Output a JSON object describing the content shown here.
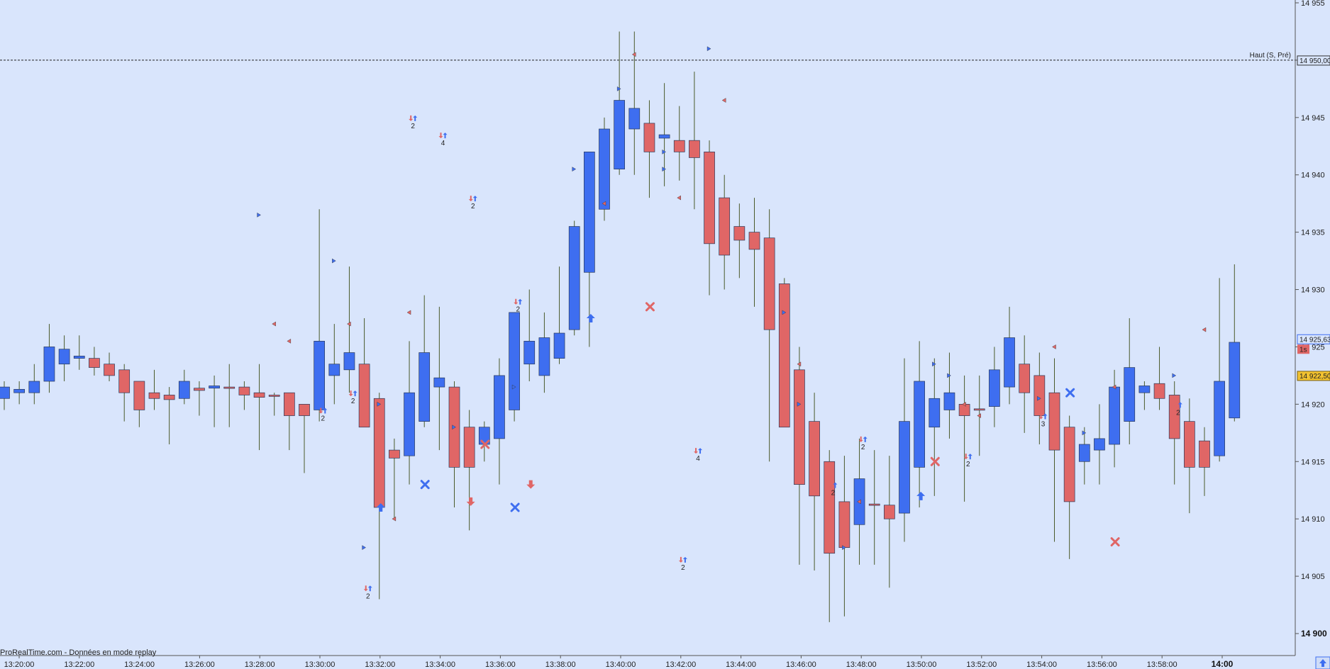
{
  "watermark": "ProRealTime.com - Données en mode replay",
  "colors": {
    "bull": "#3e6ef0",
    "bear": "#e06666",
    "bg": "#d9e5fc",
    "wick": "#4a5a2a"
  },
  "markers": {
    "label_1s": "1s",
    "count_labels": [
      "2",
      "2",
      "2",
      "2",
      "4",
      "2",
      "2",
      "4",
      "2",
      "2",
      "2",
      "2",
      "3",
      "2"
    ]
  },
  "chart_data": {
    "type": "candlestick",
    "ylim": [
      14899,
      14956
    ],
    "y_ticks": [
      "14 955",
      "14 950",
      "14 945",
      "14 940",
      "14 935",
      "14 930",
      "14 925",
      "14 920",
      "14 915",
      "14 910",
      "14 905",
      "14 900"
    ],
    "y_tick_values": [
      14955,
      14950,
      14945,
      14940,
      14935,
      14930,
      14925,
      14920,
      14915,
      14910,
      14905,
      14900
    ],
    "x_ticks": [
      "13:20:00",
      "13:22:00",
      "13:24:00",
      "13:26:00",
      "13:28:00",
      "13:30:00",
      "13:32:00",
      "13:34:00",
      "13:36:00",
      "13:38:00",
      "13:40:00",
      "13:42:00",
      "13:44:00",
      "13:46:00",
      "13:48:00",
      "13:50:00",
      "13:52:00",
      "13:54:00",
      "13:56:00",
      "13:58:00",
      "14:00"
    ],
    "x_tick_bold": "14:00",
    "reference_line": {
      "label": "Haut (S, Pré)",
      "value": 14950.0,
      "value_label": "14 950,00"
    },
    "price_labels": [
      {
        "value": 14925.63,
        "text": "14 925,63"
      },
      {
        "value": 14922.5,
        "text": "14 922,50"
      }
    ],
    "candles": [
      {
        "o": 14920.5,
        "h": 14922.0,
        "l": 14919.5,
        "c": 14921.5
      },
      {
        "o": 14921.0,
        "h": 14922.0,
        "l": 14920.0,
        "c": 14921.3
      },
      {
        "o": 14921.0,
        "h": 14923.5,
        "l": 14920.0,
        "c": 14922.0
      },
      {
        "o": 14922.0,
        "h": 14927.0,
        "l": 14921.0,
        "c": 14925.0
      },
      {
        "o": 14923.5,
        "h": 14926.0,
        "l": 14922.0,
        "c": 14924.8
      },
      {
        "o": 14924.0,
        "h": 14926.0,
        "l": 14923.0,
        "c": 14924.2
      },
      {
        "o": 14924.0,
        "h": 14925.0,
        "l": 14922.5,
        "c": 14923.2
      },
      {
        "o": 14923.5,
        "h": 14924.5,
        "l": 14922.0,
        "c": 14922.5
      },
      {
        "o": 14923.0,
        "h": 14923.5,
        "l": 14918.5,
        "c": 14921.0
      },
      {
        "o": 14922.0,
        "h": 14922.0,
        "l": 14918.0,
        "c": 14919.5
      },
      {
        "o": 14921.0,
        "h": 14923.0,
        "l": 14919.5,
        "c": 14920.5
      },
      {
        "o": 14920.8,
        "h": 14921.5,
        "l": 14916.5,
        "c": 14920.4
      },
      {
        "o": 14920.5,
        "h": 14923.0,
        "l": 14920.0,
        "c": 14922.0
      },
      {
        "o": 14921.4,
        "h": 14922.0,
        "l": 14919.0,
        "c": 14921.2
      },
      {
        "o": 14921.4,
        "h": 14922.5,
        "l": 14918.0,
        "c": 14921.6
      },
      {
        "o": 14921.5,
        "h": 14923.5,
        "l": 14918.0,
        "c": 14921.4
      },
      {
        "o": 14921.5,
        "h": 14922.0,
        "l": 14919.5,
        "c": 14920.8
      },
      {
        "o": 14921.0,
        "h": 14923.5,
        "l": 14916.0,
        "c": 14920.6
      },
      {
        "o": 14920.8,
        "h": 14921.0,
        "l": 14919.0,
        "c": 14920.7
      },
      {
        "o": 14921.0,
        "h": 14921.0,
        "l": 14916.0,
        "c": 14919.0
      },
      {
        "o": 14920.0,
        "h": 14920.0,
        "l": 14914.0,
        "c": 14919.0
      },
      {
        "o": 14919.5,
        "h": 14937.0,
        "l": 14918.5,
        "c": 14925.5
      },
      {
        "o": 14922.5,
        "h": 14927.0,
        "l": 14920.0,
        "c": 14923.5
      },
      {
        "o": 14923.0,
        "h": 14932.0,
        "l": 14921.0,
        "c": 14924.5
      },
      {
        "o": 14923.5,
        "h": 14927.5,
        "l": 14918.0,
        "c": 14918.0
      },
      {
        "o": 14920.5,
        "h": 14921.0,
        "l": 14903.0,
        "c": 14911.0
      },
      {
        "o": 14916.0,
        "h": 14917.0,
        "l": 14910.0,
        "c": 14915.3
      },
      {
        "o": 14915.5,
        "h": 14925.5,
        "l": 14913.0,
        "c": 14921.0
      },
      {
        "o": 14918.5,
        "h": 14929.5,
        "l": 14918.0,
        "c": 14924.5
      },
      {
        "o": 14921.5,
        "h": 14928.5,
        "l": 14916.0,
        "c": 14922.3
      },
      {
        "o": 14921.5,
        "h": 14922.0,
        "l": 14911.0,
        "c": 14914.5
      },
      {
        "o": 14918.0,
        "h": 14919.5,
        "l": 14909.0,
        "c": 14914.5
      },
      {
        "o": 14916.5,
        "h": 14918.5,
        "l": 14915.0,
        "c": 14918.0
      },
      {
        "o": 14917.0,
        "h": 14924.0,
        "l": 14913.0,
        "c": 14922.5
      },
      {
        "o": 14919.5,
        "h": 14928.0,
        "l": 14918.5,
        "c": 14928.0
      },
      {
        "o": 14923.5,
        "h": 14930.0,
        "l": 14922.0,
        "c": 14925.5
      },
      {
        "o": 14922.5,
        "h": 14928.0,
        "l": 14921.0,
        "c": 14925.8
      },
      {
        "o": 14924.0,
        "h": 14932.0,
        "l": 14923.5,
        "c": 14926.2
      },
      {
        "o": 14926.5,
        "h": 14936.0,
        "l": 14926.0,
        "c": 14935.5
      },
      {
        "o": 14931.5,
        "h": 14942.0,
        "l": 14925.0,
        "c": 14942.0
      },
      {
        "o": 14937.0,
        "h": 14945.0,
        "l": 14936.0,
        "c": 14944.0
      },
      {
        "o": 14940.5,
        "h": 14952.5,
        "l": 14940.0,
        "c": 14946.5
      },
      {
        "o": 14944.0,
        "h": 14952.5,
        "l": 14940.0,
        "c": 14945.8
      },
      {
        "o": 14944.5,
        "h": 14946.5,
        "l": 14938.0,
        "c": 14942.0
      },
      {
        "o": 14943.2,
        "h": 14948.0,
        "l": 14939.0,
        "c": 14943.5
      },
      {
        "o": 14943.0,
        "h": 14946.0,
        "l": 14939.5,
        "c": 14942.0
      },
      {
        "o": 14943.0,
        "h": 14949.0,
        "l": 14937.0,
        "c": 14941.5
      },
      {
        "o": 14942.0,
        "h": 14943.0,
        "l": 14929.5,
        "c": 14934.0
      },
      {
        "o": 14938.0,
        "h": 14940.0,
        "l": 14930.0,
        "c": 14933.0
      },
      {
        "o": 14935.5,
        "h": 14937.5,
        "l": 14931.0,
        "c": 14934.3
      },
      {
        "o": 14935.0,
        "h": 14938.0,
        "l": 14928.5,
        "c": 14933.5
      },
      {
        "o": 14934.5,
        "h": 14937.0,
        "l": 14915.0,
        "c": 14926.5
      },
      {
        "o": 14930.5,
        "h": 14931.0,
        "l": 14918.5,
        "c": 14918.0
      },
      {
        "o": 14923.0,
        "h": 14925.0,
        "l": 14906.0,
        "c": 14913.0
      },
      {
        "o": 14918.5,
        "h": 14921.0,
        "l": 14905.5,
        "c": 14912.0
      },
      {
        "o": 14915.0,
        "h": 14916.0,
        "l": 14901.0,
        "c": 14907.0
      },
      {
        "o": 14911.5,
        "h": 14915.5,
        "l": 14901.5,
        "c": 14907.5
      },
      {
        "o": 14909.5,
        "h": 14917.0,
        "l": 14906.0,
        "c": 14913.5
      },
      {
        "o": 14911.3,
        "h": 14916.0,
        "l": 14906.0,
        "c": 14911.2
      },
      {
        "o": 14911.2,
        "h": 14915.5,
        "l": 14904.0,
        "c": 14910.0
      },
      {
        "o": 14910.5,
        "h": 14924.0,
        "l": 14908.0,
        "c": 14918.5
      },
      {
        "o": 14914.5,
        "h": 14925.5,
        "l": 14911.0,
        "c": 14922.0
      },
      {
        "o": 14918.0,
        "h": 14924.0,
        "l": 14912.0,
        "c": 14920.5
      },
      {
        "o": 14919.5,
        "h": 14924.5,
        "l": 14917.0,
        "c": 14921.0
      },
      {
        "o": 14920.0,
        "h": 14922.5,
        "l": 14911.5,
        "c": 14919.0
      },
      {
        "o": 14919.6,
        "h": 14922.5,
        "l": 14915.5,
        "c": 14919.5
      },
      {
        "o": 14919.8,
        "h": 14925.0,
        "l": 14918.0,
        "c": 14923.0
      },
      {
        "o": 14921.5,
        "h": 14928.5,
        "l": 14920.0,
        "c": 14925.8
      },
      {
        "o": 14923.5,
        "h": 14926.0,
        "l": 14917.5,
        "c": 14921.0
      },
      {
        "o": 14922.5,
        "h": 14924.5,
        "l": 14916.5,
        "c": 14919.0
      },
      {
        "o": 14921.0,
        "h": 14924.0,
        "l": 14908.0,
        "c": 14916.0
      },
      {
        "o": 14918.0,
        "h": 14919.0,
        "l": 14906.5,
        "c": 14911.5
      },
      {
        "o": 14915.0,
        "h": 14918.0,
        "l": 14913.0,
        "c": 14916.5
      },
      {
        "o": 14916.0,
        "h": 14920.0,
        "l": 14913.0,
        "c": 14917.0
      },
      {
        "o": 14916.5,
        "h": 14923.0,
        "l": 14914.5,
        "c": 14921.5
      },
      {
        "o": 14918.5,
        "h": 14927.5,
        "l": 14916.5,
        "c": 14923.2
      },
      {
        "o": 14921.0,
        "h": 14922.0,
        "l": 14919.5,
        "c": 14921.6
      },
      {
        "o": 14921.8,
        "h": 14925.0,
        "l": 14919.5,
        "c": 14920.5
      },
      {
        "o": 14920.8,
        "h": 14922.0,
        "l": 14913.0,
        "c": 14917.0
      },
      {
        "o": 14918.5,
        "h": 14920.5,
        "l": 14910.5,
        "c": 14914.5
      },
      {
        "o": 14916.8,
        "h": 14918.0,
        "l": 14912.0,
        "c": 14914.5
      },
      {
        "o": 14915.5,
        "h": 14931.0,
        "l": 14915.0,
        "c": 14922.0
      },
      {
        "o": 14918.8,
        "h": 14932.2,
        "l": 14918.5,
        "c": 14925.4
      }
    ]
  }
}
